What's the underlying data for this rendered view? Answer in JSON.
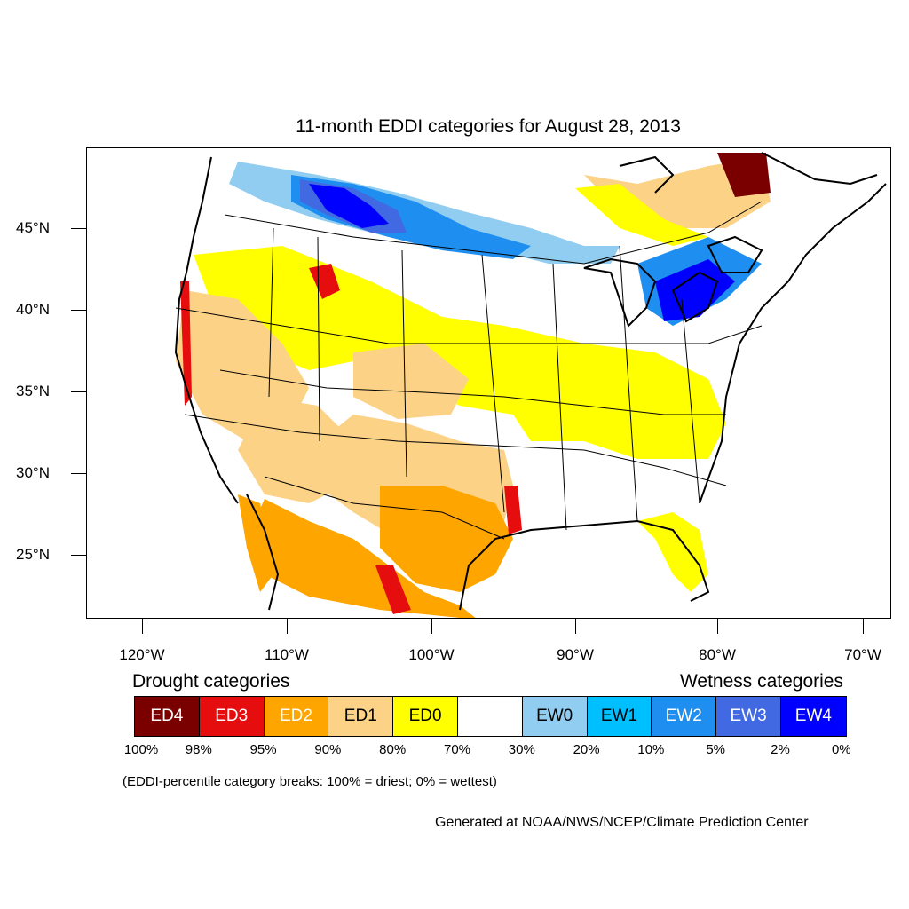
{
  "title": "11-month EDDI categories for August 28, 2013",
  "map": {
    "lat_labels": [
      "45°N",
      "40°N",
      "35°N",
      "30°N",
      "25°N"
    ],
    "lon_labels": [
      "120°W",
      "110°W",
      "100°W",
      "90°W",
      "80°W",
      "70°W"
    ]
  },
  "legend": {
    "drought_heading": "Drought categories",
    "wetness_heading": "Wetness categories",
    "categories": [
      {
        "label": "ED4",
        "color": "#7a0000",
        "text_color": "#ffffff"
      },
      {
        "label": "ED3",
        "color": "#e50d0d",
        "text_color": "#ffffff"
      },
      {
        "label": "ED2",
        "color": "#ffa500",
        "text_color": "#ffffff"
      },
      {
        "label": "ED1",
        "color": "#fcd287",
        "text_color": "#000000"
      },
      {
        "label": "ED0",
        "color": "#ffff00",
        "text_color": "#000000"
      },
      {
        "label": "",
        "color": "#ffffff",
        "text_color": "#000000"
      },
      {
        "label": "EW0",
        "color": "#90cdf0",
        "text_color": "#000000"
      },
      {
        "label": "EW1",
        "color": "#00bfff",
        "text_color": "#000000"
      },
      {
        "label": "EW2",
        "color": "#1e8ff0",
        "text_color": "#ffffff"
      },
      {
        "label": "EW3",
        "color": "#4169e1",
        "text_color": "#ffffff"
      },
      {
        "label": "EW4",
        "color": "#0000ff",
        "text_color": "#ffffff"
      }
    ],
    "percent_breaks": [
      "100%",
      "98%",
      "95%",
      "90%",
      "80%",
      "70%",
      "30%",
      "20%",
      "10%",
      "5%",
      "2%",
      "0%"
    ],
    "break_note": "(EDDI-percentile category breaks: 100% = driest; 0% = wettest)"
  },
  "credit": "Generated at NOAA/NWS/NCEP/Climate Prediction Center"
}
